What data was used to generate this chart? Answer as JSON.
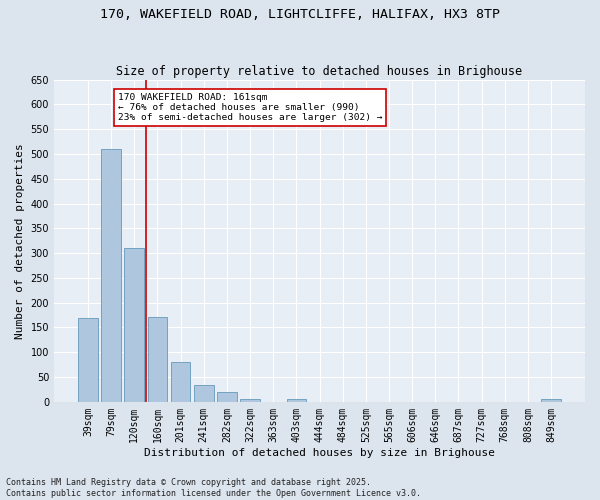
{
  "title_line1": "170, WAKEFIELD ROAD, LIGHTCLIFFE, HALIFAX, HX3 8TP",
  "title_line2": "Size of property relative to detached houses in Brighouse",
  "xlabel": "Distribution of detached houses by size in Brighouse",
  "ylabel": "Number of detached properties",
  "categories": [
    "39sqm",
    "79sqm",
    "120sqm",
    "160sqm",
    "201sqm",
    "241sqm",
    "282sqm",
    "322sqm",
    "363sqm",
    "403sqm",
    "444sqm",
    "484sqm",
    "525sqm",
    "565sqm",
    "606sqm",
    "646sqm",
    "687sqm",
    "727sqm",
    "768sqm",
    "808sqm",
    "849sqm"
  ],
  "values": [
    170,
    510,
    310,
    172,
    80,
    33,
    20,
    5,
    0,
    6,
    0,
    0,
    0,
    0,
    0,
    0,
    0,
    0,
    0,
    0,
    5
  ],
  "bar_color": "#aec6de",
  "bar_edge_color": "#6699bb",
  "background_color": "#e8eef5",
  "fig_background_color": "#dce4ee",
  "grid_color": "#ffffff",
  "property_line_x": 2.5,
  "property_line_color": "#cc0000",
  "annotation_text": "170 WAKEFIELD ROAD: 161sqm\n← 76% of detached houses are smaller (990)\n23% of semi-detached houses are larger (302) →",
  "annotation_box_color": "#cc0000",
  "footnote": "Contains HM Land Registry data © Crown copyright and database right 2025.\nContains public sector information licensed under the Open Government Licence v3.0.",
  "ylim": [
    0,
    650
  ],
  "yticks": [
    0,
    50,
    100,
    150,
    200,
    250,
    300,
    350,
    400,
    450,
    500,
    550,
    600,
    650
  ],
  "title_fontsize": 9.5,
  "subtitle_fontsize": 8.5,
  "axis_label_fontsize": 8,
  "tick_fontsize": 7,
  "footnote_fontsize": 6
}
